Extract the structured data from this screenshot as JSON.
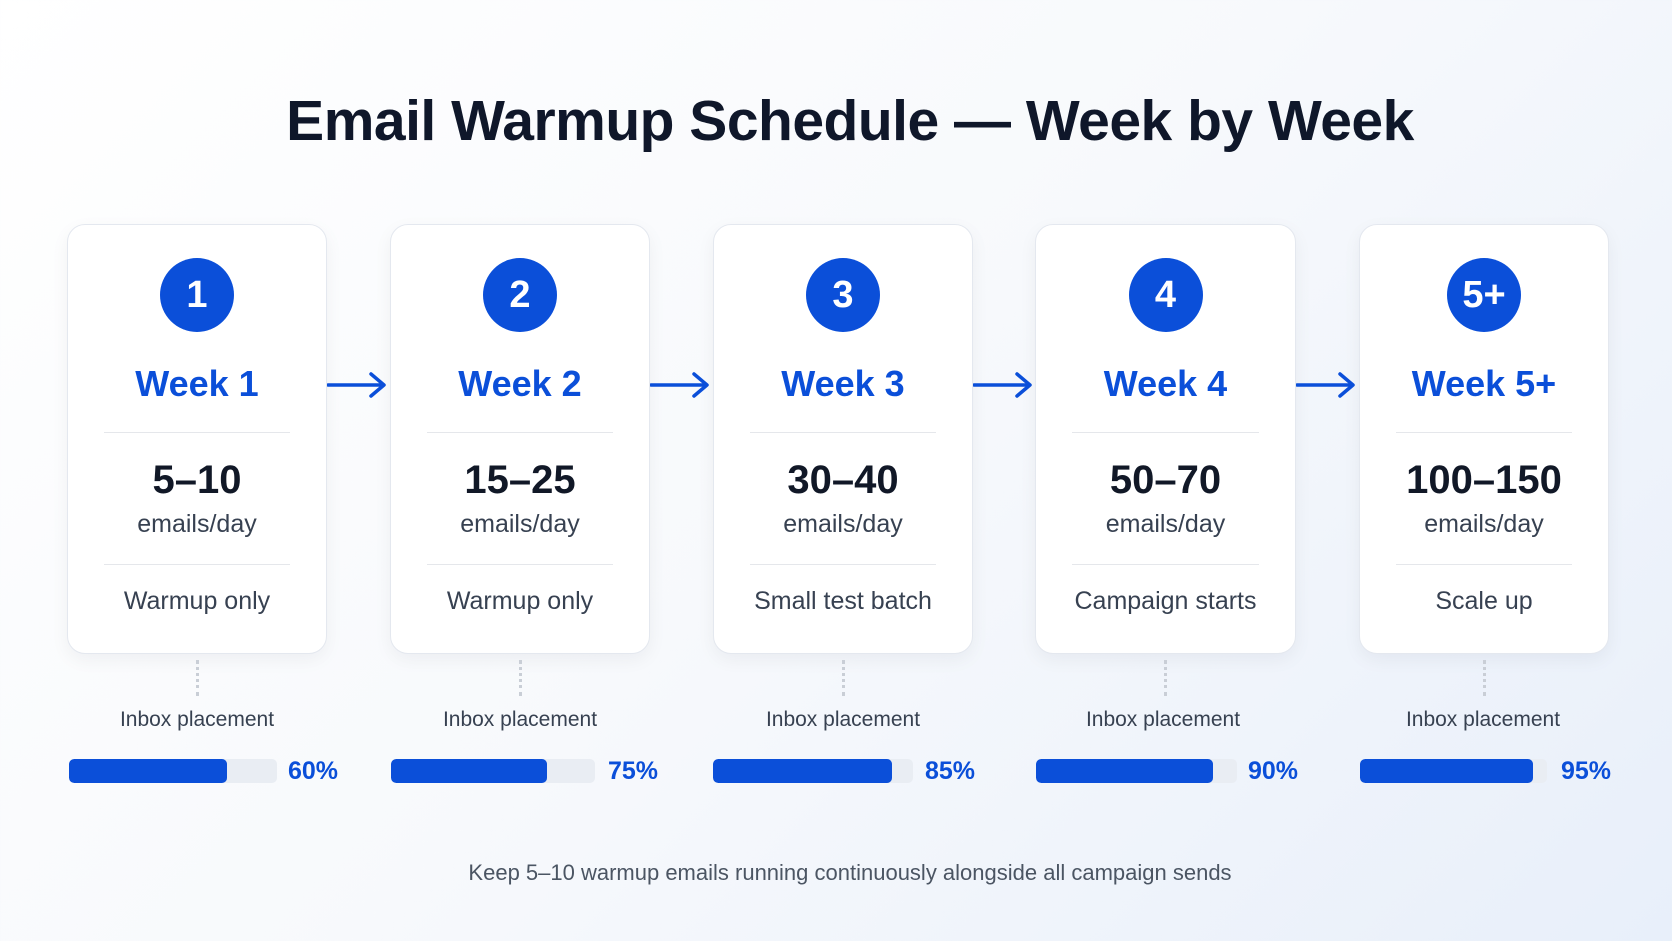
{
  "title": "Email Warmup Schedule — Week by Week",
  "accent_color": "#0b4fd9",
  "arrow_icon": "right-arrow-icon",
  "weeks": [
    {
      "badge": "1",
      "label": "Week 1",
      "volume": "5–10",
      "unit": "emails/day",
      "phase": "Warmup only",
      "inbox_label": "Inbox placement",
      "inbox_pct": 60,
      "inbox_text": "60%"
    },
    {
      "badge": "2",
      "label": "Week 2",
      "volume": "15–25",
      "unit": "emails/day",
      "phase": "Warmup only",
      "inbox_label": "Inbox placement",
      "inbox_pct": 75,
      "inbox_text": "75%"
    },
    {
      "badge": "3",
      "label": "Week 3",
      "volume": "30–40",
      "unit": "emails/day",
      "phase": "Small test batch",
      "inbox_label": "Inbox placement",
      "inbox_pct": 85,
      "inbox_text": "85%"
    },
    {
      "badge": "4",
      "label": "Week 4",
      "volume": "50–70",
      "unit": "emails/day",
      "phase": "Campaign starts",
      "inbox_label": "Inbox placement",
      "inbox_pct": 90,
      "inbox_text": "90%"
    },
    {
      "badge": "5+",
      "label": "Week 5+",
      "volume": "100–150",
      "unit": "emails/day",
      "phase": "Scale up",
      "inbox_label": "Inbox placement",
      "inbox_pct": 95,
      "inbox_text": "95%"
    }
  ],
  "footer_note": "Keep 5–10 warmup emails running continuously alongside all campaign sends"
}
